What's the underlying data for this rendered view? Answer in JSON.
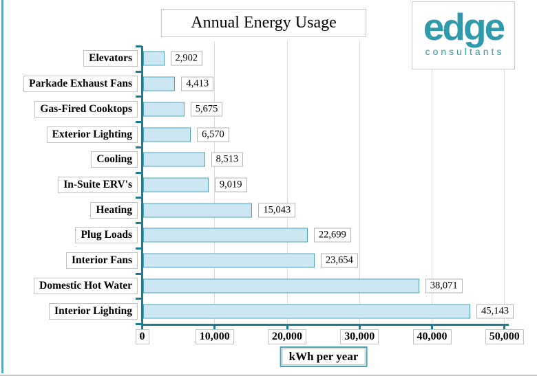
{
  "title": "Annual Energy Usage",
  "logo": {
    "brand": "edge",
    "tagline": "consultants",
    "color": "#2E9AAB"
  },
  "chart_data": {
    "type": "bar",
    "orientation": "horizontal",
    "title": "Annual Energy Usage",
    "xlabel": "kWh per year",
    "categories": [
      "Elevators",
      "Parkade Exhaust Fans",
      "Gas-Fired Cooktops",
      "Exterior Lighting",
      "Cooling",
      "In-Suite ERV's",
      "Heating",
      "Plug Loads",
      "Interior Fans",
      "Domestic Hot Water",
      "Interior Lighting"
    ],
    "values": [
      2902,
      4413,
      5675,
      6570,
      8513,
      9019,
      15043,
      22699,
      23654,
      38071,
      45143
    ],
    "value_labels": [
      "2,902",
      "4,413",
      "5,675",
      "6,570",
      "8,513",
      "9,019",
      "15,043",
      "22,699",
      "23,654",
      "38,071",
      "45,143"
    ],
    "xlim": [
      0,
      50000
    ],
    "xticks": [
      0,
      10000,
      20000,
      30000,
      40000,
      50000
    ],
    "xtick_labels": [
      "0",
      "10,000",
      "20,000",
      "30,000",
      "40,000",
      "50,000"
    ],
    "grid": "vertical gridlines at x ticks",
    "legend": "none",
    "colors": {
      "bar_fill": "#CDE7F2",
      "bar_border": "#4BA4BC",
      "axis": "#1A7D92",
      "gridline": "#DADADA",
      "box_border": "#C2C2C2",
      "logo_teal": "#2E9AAB"
    }
  }
}
